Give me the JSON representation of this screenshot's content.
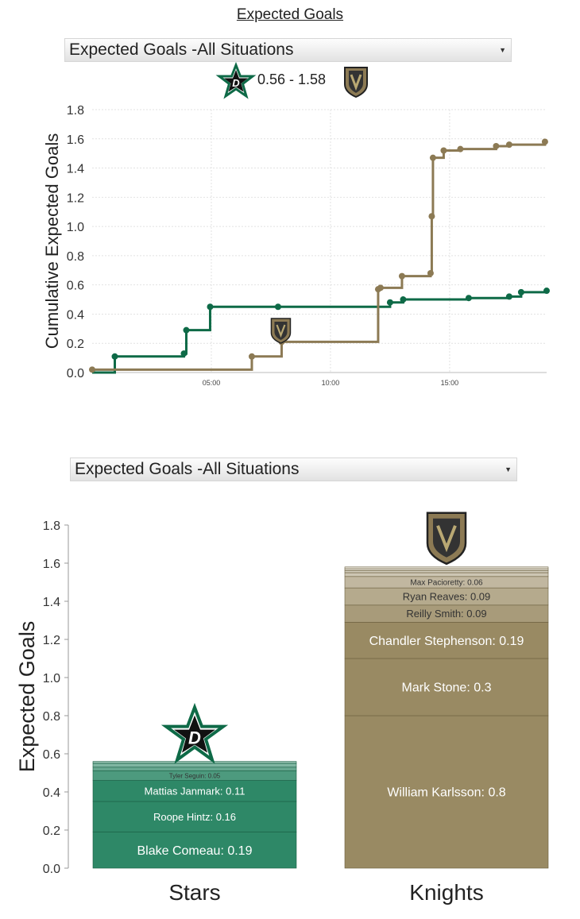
{
  "page_title": "Expected Goals",
  "selector_top": {
    "selected": "Expected Goals -All Situations"
  },
  "selector_bottom": {
    "selected": "Expected Goals -All Situations"
  },
  "score": {
    "text": "0.56 - 1.58",
    "home_logo": "stars-logo-icon",
    "away_logo": "knights-logo-icon"
  },
  "colors": {
    "stars": "#0e6a47",
    "knights": "#8c7a54",
    "stars_bar": "#2e8867",
    "knights_bar": "#998a63"
  },
  "chart_data": [
    {
      "type": "line",
      "ylabel": "Cumulative Expected Goals",
      "ylim": [
        0,
        1.8
      ],
      "yticks": [
        "0.0",
        "0.2",
        "0.4",
        "0.6",
        "0.8",
        "1.0",
        "1.2",
        "1.4",
        "1.6",
        "1.8"
      ],
      "xticks": [
        "05:00",
        "10:00",
        "15:00"
      ],
      "xtick_values": [
        5,
        10,
        15
      ],
      "xlim": [
        0,
        19.07
      ],
      "grid": true,
      "series": [
        {
          "team": "stars",
          "points": [
            [
              0.95,
              0.11
            ],
            [
              3.85,
              0.13
            ],
            [
              3.95,
              0.29
            ],
            [
              4.95,
              0.45
            ],
            [
              7.8,
              0.45
            ],
            [
              12.5,
              0.48
            ],
            [
              13.05,
              0.5
            ],
            [
              15.8,
              0.51
            ],
            [
              17.5,
              0.52
            ],
            [
              18.0,
              0.55
            ],
            [
              19.07,
              0.56
            ]
          ]
        },
        {
          "team": "knights",
          "points": [
            [
              0.0,
              0.02
            ],
            [
              6.7,
              0.11
            ],
            [
              7.95,
              0.21
            ],
            [
              12.0,
              0.57
            ],
            [
              12.1,
              0.58
            ],
            [
              13.0,
              0.66
            ],
            [
              14.2,
              0.68
            ],
            [
              14.25,
              1.07
            ],
            [
              14.3,
              1.47
            ],
            [
              14.75,
              1.52
            ],
            [
              15.45,
              1.53
            ],
            [
              16.95,
              1.55
            ],
            [
              17.5,
              1.56
            ],
            [
              19.0,
              1.58
            ]
          ]
        }
      ],
      "annotation": {
        "icon": "knights-logo-icon",
        "x": 7.95,
        "y": 0.25
      }
    },
    {
      "type": "bar",
      "ylabel": "Expected Goals",
      "ylim": [
        0,
        1.8
      ],
      "yticks": [
        "0.0",
        "0.2",
        "0.4",
        "0.6",
        "0.8",
        "1.0",
        "1.2",
        "1.4",
        "1.6",
        "1.8"
      ],
      "categories": [
        "Stars",
        "Knights"
      ],
      "stacks": [
        {
          "team": "stars",
          "total": 0.56,
          "segments": [
            {
              "label": "Blake Comeau: 0.19",
              "value": 0.19
            },
            {
              "label": "Roope Hintz: 0.16",
              "value": 0.16
            },
            {
              "label": "Mattias Janmark: 0.11",
              "value": 0.11
            },
            {
              "label": "Tyler Seguin: 0.05",
              "value": 0.05
            },
            {
              "label": "",
              "value": 0.02
            },
            {
              "label": "",
              "value": 0.02
            },
            {
              "label": "",
              "value": 0.01
            }
          ]
        },
        {
          "team": "knights",
          "total": 1.58,
          "segments": [
            {
              "label": "William Karlsson: 0.8",
              "value": 0.8
            },
            {
              "label": "Mark Stone: 0.3",
              "value": 0.3
            },
            {
              "label": "Chandler Stephenson: 0.19",
              "value": 0.19
            },
            {
              "label": "Reilly Smith: 0.09",
              "value": 0.09
            },
            {
              "label": "Ryan Reaves: 0.09",
              "value": 0.09
            },
            {
              "label": "Max Pacioretty: 0.06",
              "value": 0.06
            },
            {
              "label": "",
              "value": 0.02
            },
            {
              "label": "",
              "value": 0.01
            },
            {
              "label": "",
              "value": 0.01
            },
            {
              "label": "",
              "value": 0.01
            }
          ]
        }
      ]
    }
  ]
}
